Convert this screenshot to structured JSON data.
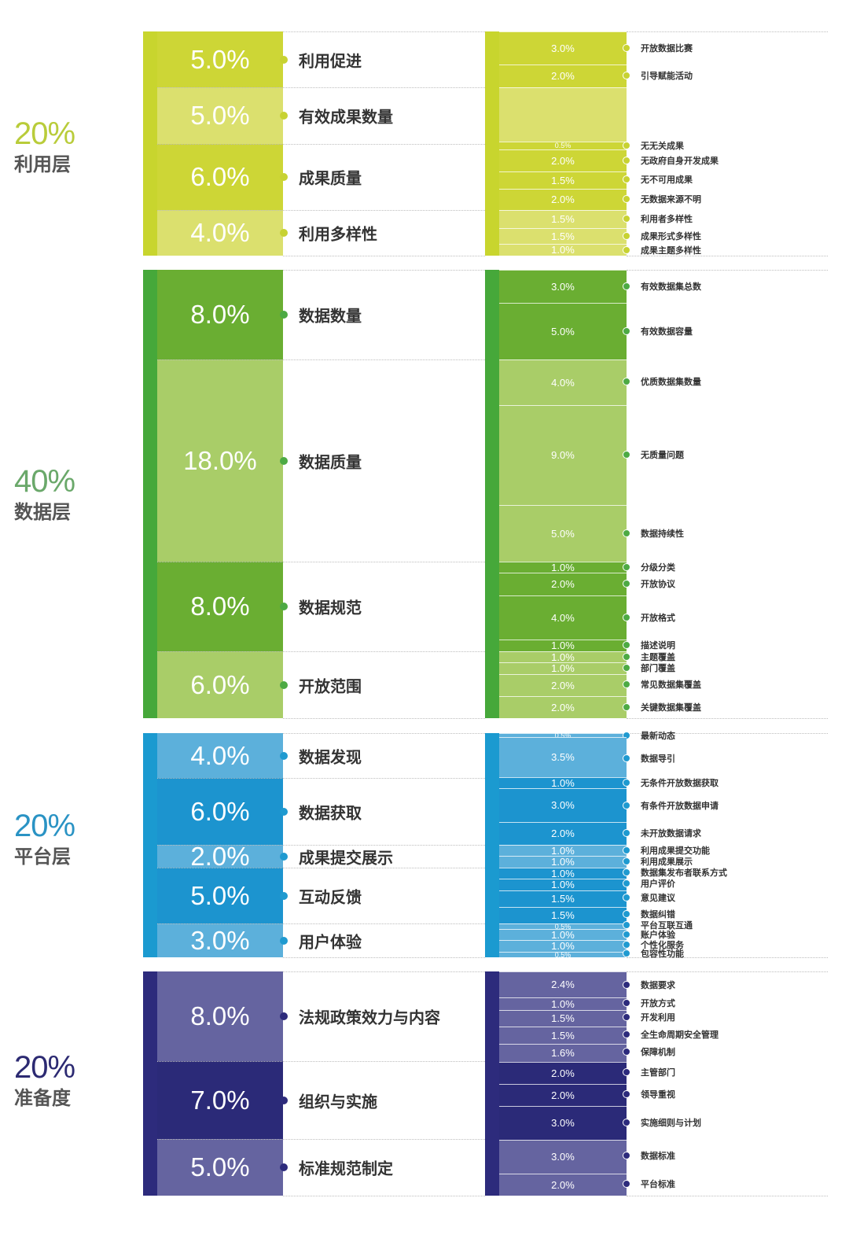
{
  "chart_data": {
    "type": "table",
    "title": "",
    "layers": [
      {
        "name": "利用层",
        "weight": "20%",
        "colors": {
          "accent": "#b9cc3a",
          "dark": "#cdd636",
          "light": "#dbe06e",
          "strip": "#c8d52e",
          "dot": "#c7d232"
        },
        "categories": [
          {
            "label": "利用促进",
            "value": "5.0%"
          },
          {
            "label": "有效成果数量",
            "value": "5.0%"
          },
          {
            "label": "成果质量",
            "value": "6.0%"
          },
          {
            "label": "利用多样性",
            "value": "4.0%"
          }
        ],
        "indicators": [
          {
            "label": "开放数据比赛",
            "value": "3.0%"
          },
          {
            "label": "引导赋能活动",
            "value": "2.0%"
          },
          {
            "label": "无无关成果",
            "value": "0.5%"
          },
          {
            "label": "无政府自身开发成果",
            "value": "2.0%"
          },
          {
            "label": "无不可用成果",
            "value": "1.5%"
          },
          {
            "label": "无数据来源不明",
            "value": "2.0%"
          },
          {
            "label": "利用者多样性",
            "value": "1.5%"
          },
          {
            "label": "成果形式多样性",
            "value": "1.5%"
          },
          {
            "label": "成果主题多样性",
            "value": "1.0%"
          }
        ]
      },
      {
        "name": "数据层",
        "weight": "40%",
        "colors": {
          "accent": "#6aa86a",
          "dark": "#6aae32",
          "light": "#a9cd68",
          "strip": "#46a83a",
          "dot": "#4daa44"
        },
        "categories": [
          {
            "label": "数据数量",
            "value": "8.0%"
          },
          {
            "label": "数据质量",
            "value": "18.0%"
          },
          {
            "label": "数据规范",
            "value": "8.0%"
          },
          {
            "label": "开放范围",
            "value": "6.0%"
          }
        ],
        "indicators": [
          {
            "label": "有效数据集总数",
            "value": "3.0%"
          },
          {
            "label": "有效数据容量",
            "value": "5.0%"
          },
          {
            "label": "优质数据集数量",
            "value": "4.0%"
          },
          {
            "label": "无质量问题",
            "value": "9.0%"
          },
          {
            "label": "数据持续性",
            "value": "5.0%"
          },
          {
            "label": "分级分类",
            "value": "1.0%"
          },
          {
            "label": "开放协议",
            "value": "2.0%"
          },
          {
            "label": "开放格式",
            "value": "4.0%"
          },
          {
            "label": "描述说明",
            "value": "1.0%"
          },
          {
            "label": "主题覆盖",
            "value": "1.0%"
          },
          {
            "label": "部门覆盖",
            "value": "1.0%"
          },
          {
            "label": "常见数据集覆盖",
            "value": "2.0%"
          },
          {
            "label": "关键数据集覆盖",
            "value": "2.0%"
          }
        ]
      },
      {
        "name": "平台层",
        "weight": "20%",
        "colors": {
          "accent": "#2a93c4",
          "dark": "#1c94cf",
          "light": "#5cb0db",
          "strip": "#1b9ad0",
          "dot": "#1f9ad0"
        },
        "categories": [
          {
            "label": "数据发现",
            "value": "4.0%"
          },
          {
            "label": "数据获取",
            "value": "6.0%"
          },
          {
            "label": "成果提交展示",
            "value": "2.0%"
          },
          {
            "label": "互动反馈",
            "value": "5.0%"
          },
          {
            "label": "用户体验",
            "value": "3.0%"
          }
        ],
        "indicators": [
          {
            "label": "最新动态",
            "value": "0.5%"
          },
          {
            "label": "数据导引",
            "value": "3.5%"
          },
          {
            "label": "无条件开放数据获取",
            "value": "1.0%"
          },
          {
            "label": "有条件开放数据申请",
            "value": "3.0%"
          },
          {
            "label": "未开放数据请求",
            "value": "2.0%"
          },
          {
            "label": "利用成果提交功能",
            "value": "1.0%"
          },
          {
            "label": "利用成果展示",
            "value": "1.0%"
          },
          {
            "label": "数据集发布者联系方式",
            "value": "1.0%"
          },
          {
            "label": "用户评价",
            "value": "1.0%"
          },
          {
            "label": "意见建议",
            "value": "1.5%"
          },
          {
            "label": "数据纠错",
            "value": "1.5%"
          },
          {
            "label": "平台互联互通",
            "value": "0.5%"
          },
          {
            "label": "账户体验",
            "value": "1.0%"
          },
          {
            "label": "个性化服务",
            "value": "1.0%"
          },
          {
            "label": "包容性功能",
            "value": "0.5%"
          }
        ]
      },
      {
        "name": "准备度",
        "weight": "20%",
        "colors": {
          "accent": "#2c2a72",
          "dark": "#2b2a78",
          "light": "#6564a0",
          "strip": "#2d2b7c",
          "dot": "#2d2b7c"
        },
        "categories": [
          {
            "label": "法规政策效力与内容",
            "value": "8.0%"
          },
          {
            "label": "组织与实施",
            "value": "7.0%"
          },
          {
            "label": "标准规范制定",
            "value": "5.0%"
          }
        ],
        "indicators": [
          {
            "label": "数据要求",
            "value": "2.4%"
          },
          {
            "label": "开放方式",
            "value": "1.0%"
          },
          {
            "label": "开发利用",
            "value": "1.5%"
          },
          {
            "label": "全生命周期安全管理",
            "value": "1.5%"
          },
          {
            "label": "保障机制",
            "value": "1.6%"
          },
          {
            "label": "主管部门",
            "value": "2.0%"
          },
          {
            "label": "领导重视",
            "value": "2.0%"
          },
          {
            "label": "实施细则与计划",
            "value": "3.0%"
          },
          {
            "label": "数据标准",
            "value": "3.0%"
          },
          {
            "label": "平台标准",
            "value": "2.0%"
          }
        ]
      }
    ]
  }
}
